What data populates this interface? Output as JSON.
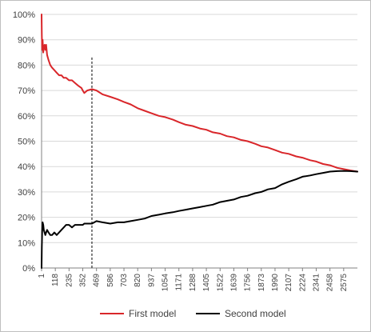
{
  "chart_data": {
    "type": "line",
    "title": "",
    "xlabel": "",
    "ylabel": "",
    "xlim": [
      1,
      2692
    ],
    "ylim": [
      0,
      100
    ],
    "y_unit": "%",
    "y_ticks": [
      0,
      10,
      20,
      30,
      40,
      50,
      60,
      70,
      80,
      90,
      100
    ],
    "y_tick_labels": [
      "0%",
      "10%",
      "20%",
      "30%",
      "40%",
      "50%",
      "60%",
      "70%",
      "80%",
      "90%",
      "100%"
    ],
    "x_tick_labels": [
      "1",
      "118",
      "235",
      "352",
      "469",
      "586",
      "703",
      "820",
      "937",
      "1054",
      "1171",
      "1288",
      "1405",
      "1522",
      "1639",
      "1756",
      "1873",
      "1990",
      "2107",
      "2224",
      "2341",
      "2458",
      "2575"
    ],
    "grid": "horizontal",
    "legend_position": "bottom",
    "reference_line": {
      "x": 430,
      "y_top": 83,
      "style": "dashed"
    },
    "colors": {
      "first": "#d9262a",
      "second": "#000000",
      "grid": "#d9d9d9",
      "axis": "#808080"
    },
    "series": [
      {
        "name": "First model",
        "color": "#d9262a",
        "x": [
          1,
          3,
          6,
          10,
          15,
          20,
          26,
          33,
          40,
          48,
          60,
          75,
          90,
          110,
          130,
          150,
          170,
          190,
          210,
          235,
          260,
          285,
          310,
          340,
          352,
          365,
          390,
          430,
          469,
          520,
          586,
          650,
          703,
          760,
          820,
          880,
          937,
          1000,
          1054,
          1120,
          1171,
          1230,
          1288,
          1350,
          1405,
          1460,
          1522,
          1580,
          1639,
          1700,
          1756,
          1820,
          1873,
          1930,
          1990,
          2050,
          2107,
          2170,
          2224,
          2290,
          2341,
          2400,
          2458,
          2520,
          2575,
          2630,
          2692
        ],
        "values": [
          100,
          92,
          86,
          90,
          85,
          87,
          88,
          86,
          88,
          84,
          82,
          80,
          79,
          78,
          77,
          76,
          76,
          75,
          75,
          74,
          74,
          73,
          72,
          71,
          70,
          69,
          70,
          70.5,
          70,
          68.5,
          67.5,
          66.5,
          65.5,
          64.5,
          63,
          62,
          61,
          60,
          59.5,
          58.5,
          57.5,
          56.5,
          56,
          55,
          54.5,
          53.5,
          53,
          52,
          51.5,
          50.5,
          50,
          49,
          48,
          47.5,
          46.5,
          45.5,
          45,
          44,
          43.5,
          42.5,
          42,
          41,
          40.5,
          39.5,
          39,
          38.5,
          38
        ]
      },
      {
        "name": "Second model",
        "color": "#000000",
        "x": [
          1,
          3,
          6,
          10,
          15,
          20,
          26,
          33,
          40,
          48,
          60,
          75,
          90,
          110,
          130,
          150,
          170,
          190,
          210,
          235,
          260,
          285,
          310,
          340,
          352,
          365,
          390,
          430,
          469,
          520,
          586,
          650,
          703,
          760,
          820,
          880,
          937,
          1000,
          1054,
          1120,
          1171,
          1230,
          1288,
          1350,
          1405,
          1460,
          1522,
          1580,
          1639,
          1700,
          1756,
          1820,
          1873,
          1930,
          1990,
          2050,
          2107,
          2170,
          2224,
          2290,
          2341,
          2400,
          2458,
          2520,
          2575,
          2630,
          2692
        ],
        "values": [
          0,
          8,
          14,
          18,
          17,
          15,
          14,
          13,
          14,
          15,
          14,
          13,
          13,
          14,
          13,
          14,
          15,
          16,
          17,
          17,
          16,
          17,
          17,
          17,
          17,
          17.5,
          17.5,
          17.5,
          18.5,
          18,
          17.5,
          18,
          18,
          18.5,
          19,
          19.5,
          20.5,
          21,
          21.5,
          22,
          22.5,
          23,
          23.5,
          24,
          24.5,
          25,
          26,
          26.5,
          27,
          28,
          28.5,
          29.5,
          30,
          31,
          31.5,
          33,
          34,
          35,
          36,
          36.5,
          37,
          37.5,
          38,
          38.2,
          38.3,
          38.2,
          38
        ]
      }
    ]
  }
}
